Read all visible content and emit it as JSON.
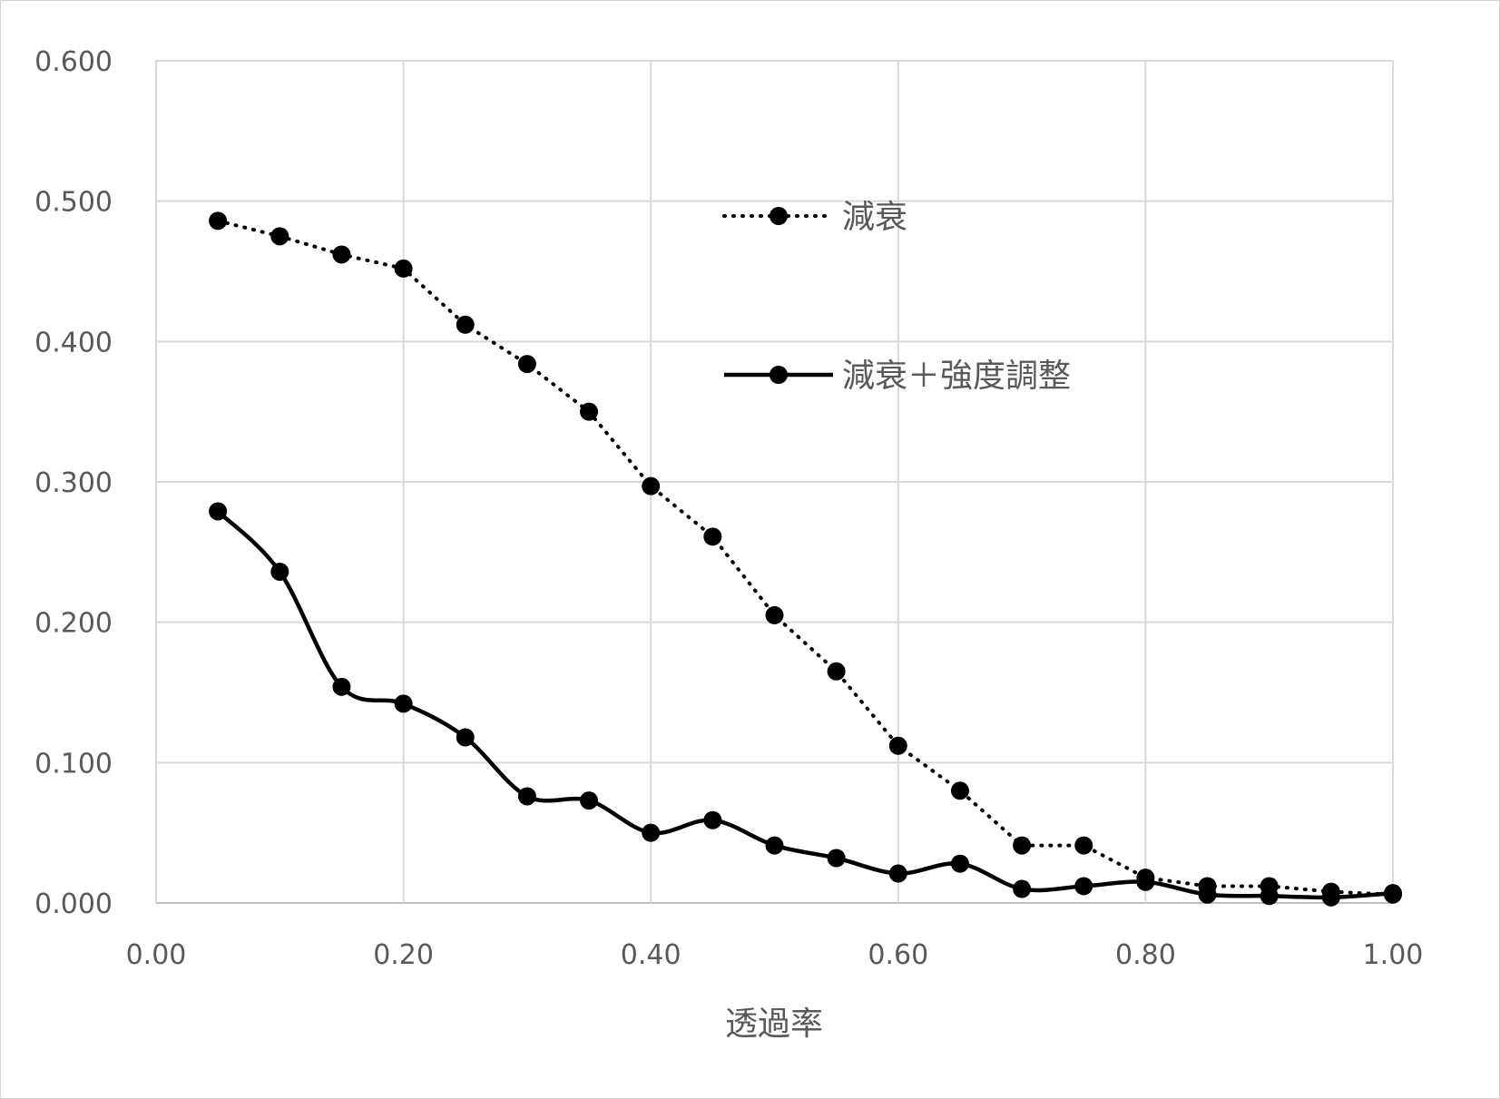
{
  "chart_data": {
    "type": "line",
    "title": "",
    "xlabel": "透過率",
    "ylabel": "",
    "xlim": [
      0,
      1
    ],
    "ylim": [
      0,
      0.6
    ],
    "x_ticks": [
      "0.00",
      "0.20",
      "0.40",
      "0.60",
      "0.80",
      "1.00"
    ],
    "y_ticks": [
      "0.000",
      "0.100",
      "0.200",
      "0.300",
      "0.400",
      "0.500",
      "0.600"
    ],
    "grid": true,
    "legend_position": "top-center",
    "series": [
      {
        "name": "減衰",
        "line_style": "dotted",
        "smooth": false,
        "color": "#000000",
        "x": [
          0.05,
          0.1,
          0.15,
          0.2,
          0.25,
          0.3,
          0.35,
          0.4,
          0.45,
          0.5,
          0.55,
          0.6,
          0.65,
          0.7,
          0.75,
          0.8,
          0.85,
          0.9,
          0.95,
          1.0
        ],
        "y": [
          0.486,
          0.475,
          0.462,
          0.452,
          0.412,
          0.384,
          0.35,
          0.297,
          0.261,
          0.205,
          0.165,
          0.112,
          0.08,
          0.041,
          0.041,
          0.018,
          0.012,
          0.012,
          0.008,
          0.006
        ]
      },
      {
        "name": "減衰＋強度調整",
        "line_style": "solid",
        "smooth": true,
        "color": "#000000",
        "x": [
          0.05,
          0.1,
          0.15,
          0.2,
          0.25,
          0.3,
          0.35,
          0.4,
          0.45,
          0.5,
          0.55,
          0.6,
          0.65,
          0.7,
          0.75,
          0.8,
          0.85,
          0.9,
          0.95,
          1.0
        ],
        "y": [
          0.279,
          0.236,
          0.154,
          0.142,
          0.118,
          0.076,
          0.073,
          0.05,
          0.059,
          0.041,
          0.032,
          0.021,
          0.028,
          0.01,
          0.012,
          0.015,
          0.006,
          0.005,
          0.004,
          0.007
        ]
      }
    ]
  }
}
